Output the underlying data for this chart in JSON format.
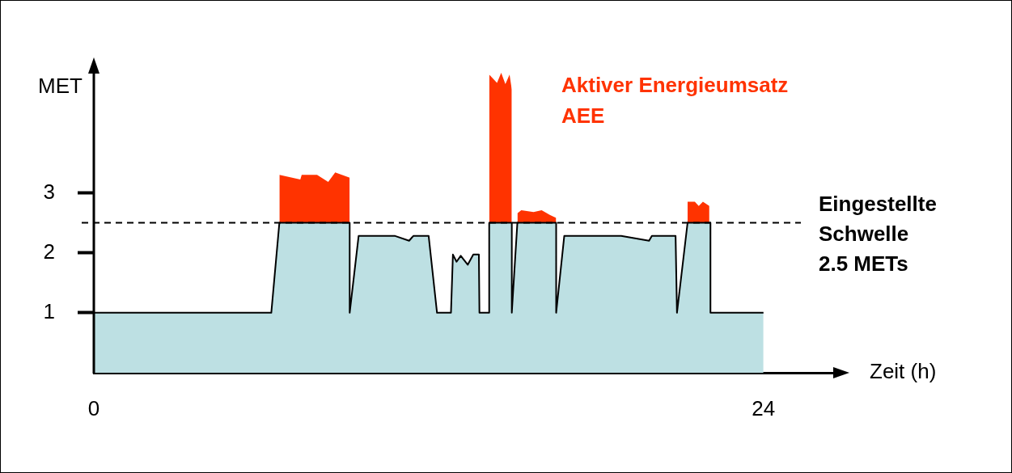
{
  "chart_data": {
    "type": "area",
    "xlabel": "Zeit (h)",
    "ylabel": "MET",
    "xlim": [
      0,
      26.5
    ],
    "xticks": [
      0,
      24
    ],
    "ylim": [
      0,
      5
    ],
    "yticks": [
      1,
      2,
      3
    ],
    "grid": false,
    "legend": false,
    "series": [
      {
        "color": "#bde0e3",
        "x": [
          0,
          6.36,
          6.65,
          9.17,
          9.17,
          9.49,
          10.8,
          11.3,
          11.45,
          12.0,
          12.3,
          12.8,
          12.87,
          13.0,
          13.15,
          13.4,
          13.6,
          13.8,
          13.82,
          14.17,
          14.17,
          14.98,
          14.98,
          15.18,
          16.57,
          16.57,
          16.86,
          18.9,
          19.9,
          20.0,
          20.85,
          20.9,
          21.28,
          22.1,
          22.1,
          24.0
        ],
        "values": [
          1,
          1,
          2.5,
          2.5,
          1,
          2.28,
          2.28,
          2.2,
          2.28,
          2.28,
          1,
          1,
          1.97,
          1.85,
          1.95,
          1.8,
          1.97,
          1.97,
          1,
          1,
          2.5,
          2.5,
          1,
          2.5,
          2.5,
          1,
          2.28,
          2.28,
          2.2,
          2.28,
          2.28,
          1,
          2.5,
          2.5,
          1,
          1
        ]
      },
      {
        "name": "Aktiver Energieumsatz AEE",
        "color": "#ff3300",
        "x": [
          6.65,
          7.4,
          7.45,
          8.0,
          8.4,
          8.65,
          9.17,
          9.2,
          14.17,
          14.45,
          14.6,
          14.75,
          14.9,
          14.98,
          15.0,
          15.18,
          15.32,
          15.76,
          16.05,
          16.34,
          16.57,
          16.6,
          21.28,
          21.54,
          21.68,
          21.83,
          22.06
        ],
        "values": [
          3.3,
          3.22,
          3.3,
          3.3,
          3.18,
          3.34,
          3.25,
          null,
          4.97,
          4.83,
          5.0,
          4.81,
          4.97,
          4.72,
          null,
          2.66,
          2.71,
          2.68,
          2.71,
          2.63,
          2.58,
          null,
          2.85,
          2.85,
          2.78,
          2.85,
          2.78
        ]
      }
    ],
    "ref_lines": [
      {
        "axis": "y",
        "value": 2.5,
        "label": "Eingestellte Schwelle 2.5 METs",
        "color": "#000000",
        "line_style": "dashed"
      }
    ]
  }
}
